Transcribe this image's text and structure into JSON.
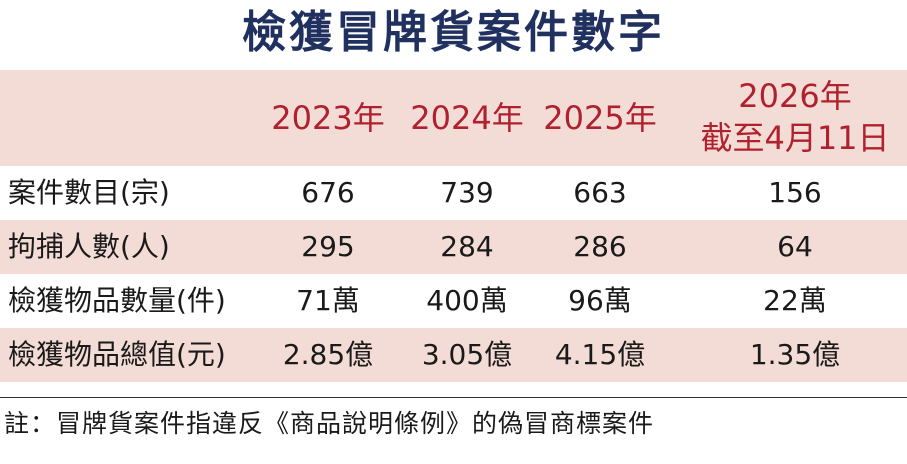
{
  "title": "檢獲冒牌貨案件數字",
  "headers": {
    "y2023": "2023年",
    "y2024": "2024年",
    "y2025": "2025年",
    "y2026_line1": "2026年",
    "y2026_line2": "截至4月11日"
  },
  "rows": [
    {
      "label": "案件數目(宗)",
      "v2023": "676",
      "v2024": "739",
      "v2025": "663",
      "v2026": "156"
    },
    {
      "label": "拘捕人數(人)",
      "v2023": "295",
      "v2024": "284",
      "v2025": "286",
      "v2026": "64"
    },
    {
      "label": "檢獲物品數量(件)",
      "v2023": "71萬",
      "v2024": "400萬",
      "v2025": "96萬",
      "v2026": "22萬"
    },
    {
      "label": "檢獲物品總值(元)",
      "v2023": "2.85億",
      "v2024": "3.05億",
      "v2025": "4.15億",
      "v2026": "1.35億"
    }
  ],
  "note": "註：冒牌貨案件指違反《商品說明條例》的偽冒商標案件",
  "colors": {
    "title": "#20305f",
    "header_text": "#b0212f",
    "band": "#f3dcd5"
  }
}
